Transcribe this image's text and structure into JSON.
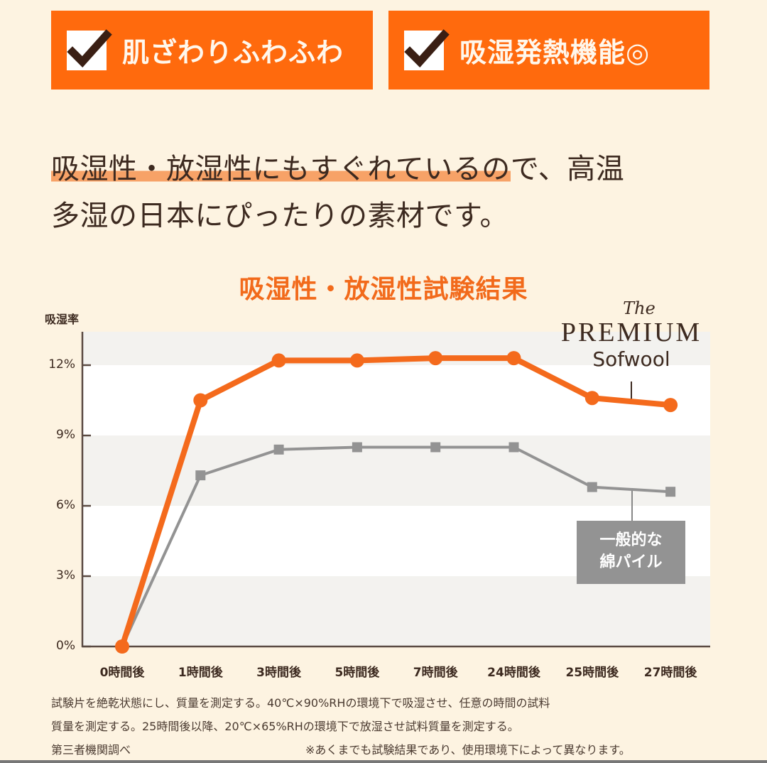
{
  "banners": [
    {
      "label": "肌ざわりふわふわ",
      "icon": "checkbox-checked-icon"
    },
    {
      "label": "吸湿発熱機能◎",
      "icon": "checkbox-checked-icon"
    }
  ],
  "headline": {
    "line1_highlight": "吸湿性・放湿性にもすぐれているの",
    "line1_rest": "で、高温",
    "line2": "多湿の日本にぴったりの素材です。"
  },
  "colors": {
    "background": "#fdf3e1",
    "accent_orange": "#ff6a0d",
    "series_orange": "#f46a1c",
    "series_gray": "#939393",
    "text_brown": "#3d2a20"
  },
  "brand": {
    "the": "The",
    "premium": "PREMIUM",
    "sofwool": "Sofwool"
  },
  "gray_label": {
    "line1": "一般的な",
    "line2": "綿パイル"
  },
  "chart_data": {
    "type": "line",
    "title": "吸湿性・放湿性試験結果",
    "xlabel": "",
    "ylabel": "吸湿率",
    "categories": [
      "0時間後",
      "1時間後",
      "3時間後",
      "5時間後",
      "7時間後",
      "24時間後",
      "25時間後",
      "27時間後"
    ],
    "yticks": [
      "0%",
      "3%",
      "6%",
      "9%",
      "12%"
    ],
    "ylim": [
      0,
      13.3
    ],
    "grid": "alternating horizontal bands",
    "series": [
      {
        "name": "The PREMIUM Sofwool",
        "color": "#f46a1c",
        "marker": "circle",
        "values": [
          0,
          10.5,
          12.2,
          12.2,
          12.3,
          12.3,
          10.6,
          10.3
        ]
      },
      {
        "name": "一般的な綿パイル",
        "color": "#939393",
        "marker": "square",
        "values": [
          0,
          7.3,
          8.4,
          8.5,
          8.5,
          8.5,
          6.8,
          6.6
        ]
      }
    ],
    "legend": "direct labels near line ends (right side)"
  },
  "footnotes": {
    "line1": "試験片を絶乾状態にし、質量を測定する。40℃×90%RHの環境下で吸湿させ、任意の時間の試料",
    "line2": "質量を測定する。25時間後以降、20℃×65%RHの環境下で放湿させ試料質量を測定する。",
    "line3_left": "第三者機関調べ",
    "line3_right": "※あくまでも試験結果であり、使用環境下によって異なります。"
  }
}
